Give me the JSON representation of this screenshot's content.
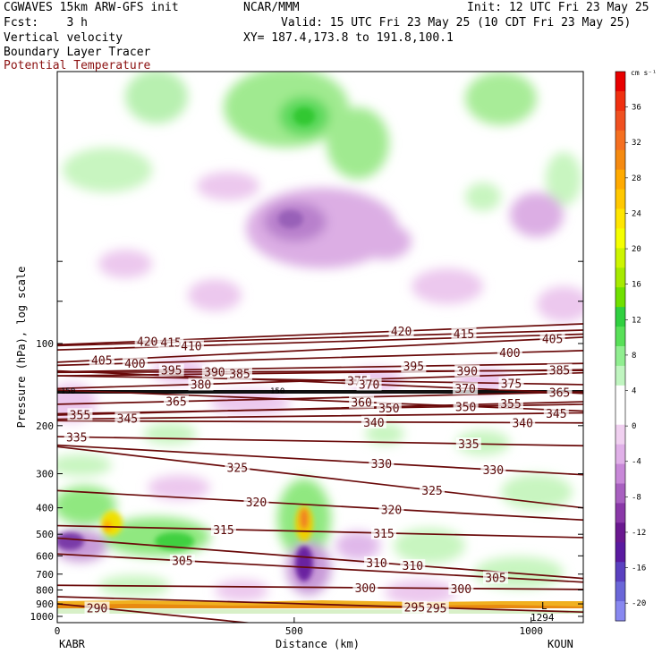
{
  "header": {
    "model": "CGWAVES 15km ARW-GFS init",
    "org": "NCAR/MMM",
    "init": "Init: 12 UTC Fri 23 May 25",
    "fcst": "Fcst:    3 h",
    "valid": "Valid: 15 UTC Fri 23 May 25 (10 CDT Fri 23 May 25)",
    "field1": "Vertical velocity",
    "xy": "XY= 187.4,173.8 to 191.8,100.1",
    "field2": "Boundary Layer Tracer",
    "field3": "Potential Temperature"
  },
  "chart_data": {
    "type": "heatmap",
    "title": "Vertical velocity",
    "xlabel": "Distance (km)",
    "ylabel": "Pressure (hPa), log scale",
    "x_ticks": [
      0,
      500,
      1000
    ],
    "xlim": [
      0,
      1110
    ],
    "y_ticks": [
      100,
      200,
      300,
      400,
      500,
      600,
      700,
      800,
      900,
      1000
    ],
    "y_scale": "log",
    "x_endpoints": {
      "left": "KABR",
      "right": "KOUN"
    },
    "colorbar": {
      "units": "cm s⁻¹",
      "labels": [
        36,
        32,
        28,
        24,
        20,
        16,
        12,
        8,
        4,
        0,
        -4,
        -8,
        -12,
        -16,
        -20
      ],
      "colors": [
        "#e80000",
        "#f03010",
        "#f05020",
        "#f56f20",
        "#f58a10",
        "#ffaa00",
        "#ffc800",
        "#ffe600",
        "#f5ff00",
        "#cdf500",
        "#a6ea00",
        "#6fe000",
        "#30d040",
        "#58e058",
        "#90ee90",
        "#c0f5c0",
        "#ffffff",
        "#ffffff",
        "#f0d0f0",
        "#e0b0e8",
        "#c888d8",
        "#a860c0",
        "#8a38a8",
        "#6a1890",
        "#5a1aa0",
        "#5a40c0",
        "#6a66d8",
        "#8888f0"
      ]
    },
    "theta_isentropes": {
      "color": "#6a0a0a",
      "labels": [
        {
          "value": "420",
          "x": 190,
          "p": 98
        },
        {
          "value": "415",
          "x": 240,
          "p": 99
        },
        {
          "value": "410",
          "x": 283,
          "p": 102
        },
        {
          "value": "405",
          "x": 94,
          "p": 115
        },
        {
          "value": "400",
          "x": 164,
          "p": 118
        },
        {
          "value": "395",
          "x": 241,
          "p": 125
        },
        {
          "value": "390",
          "x": 332,
          "p": 127
        },
        {
          "value": "385",
          "x": 385,
          "p": 129
        },
        {
          "value": "380",
          "x": 303,
          "p": 141
        },
        {
          "value": "375",
          "x": 634,
          "p": 137
        },
        {
          "value": "370",
          "x": 658,
          "p": 141
        },
        {
          "value": "365",
          "x": 251,
          "p": 163
        },
        {
          "value": "360",
          "x": 642,
          "p": 164
        },
        {
          "value": "355",
          "x": 48,
          "p": 182
        },
        {
          "value": "350",
          "x": 700,
          "p": 172
        },
        {
          "value": "345",
          "x": 148,
          "p": 188
        },
        {
          "value": "340",
          "x": 668,
          "p": 194
        },
        {
          "value": "335",
          "x": 41,
          "p": 220
        },
        {
          "value": "330",
          "x": 684,
          "p": 275
        },
        {
          "value": "325",
          "x": 380,
          "p": 285
        },
        {
          "value": "320",
          "x": 420,
          "p": 380
        },
        {
          "value": "315",
          "x": 351,
          "p": 480
        },
        {
          "value": "310",
          "x": 750,
          "p": 650
        },
        {
          "value": "305",
          "x": 264,
          "p": 625
        },
        {
          "value": "300",
          "x": 852,
          "p": 790
        },
        {
          "value": "295",
          "x": 800,
          "p": 930
        },
        {
          "value": "290",
          "x": 84,
          "p": 930
        },
        {
          "value": "420",
          "x": 726,
          "p": 90
        },
        {
          "value": "415",
          "x": 858,
          "p": 92
        },
        {
          "value": "405",
          "x": 1045,
          "p": 96
        },
        {
          "value": "400",
          "x": 955,
          "p": 108
        },
        {
          "value": "395",
          "x": 752,
          "p": 121
        },
        {
          "value": "390",
          "x": 865,
          "p": 126
        },
        {
          "value": "385",
          "x": 1060,
          "p": 125
        },
        {
          "value": "375",
          "x": 958,
          "p": 140
        },
        {
          "value": "370",
          "x": 861,
          "p": 146
        },
        {
          "value": "365",
          "x": 1060,
          "p": 151
        },
        {
          "value": "355",
          "x": 957,
          "p": 166
        },
        {
          "value": "350",
          "x": 862,
          "p": 170
        },
        {
          "value": "345",
          "x": 1053,
          "p": 180
        },
        {
          "value": "340",
          "x": 982,
          "p": 195
        },
        {
          "value": "335",
          "x": 868,
          "p": 233
        },
        {
          "value": "330",
          "x": 920,
          "p": 290
        },
        {
          "value": "325",
          "x": 791,
          "p": 345
        },
        {
          "value": "320",
          "x": 705,
          "p": 405
        },
        {
          "value": "315",
          "x": 689,
          "p": 495
        },
        {
          "value": "310",
          "x": 674,
          "p": 635
        },
        {
          "value": "305",
          "x": 925,
          "p": 720
        },
        {
          "value": "300",
          "x": 650,
          "p": 785
        },
        {
          "value": "295",
          "x": 754,
          "p": 925
        }
      ]
    },
    "annotations": [
      "150",
      "150",
      "1294",
      "L"
    ]
  }
}
